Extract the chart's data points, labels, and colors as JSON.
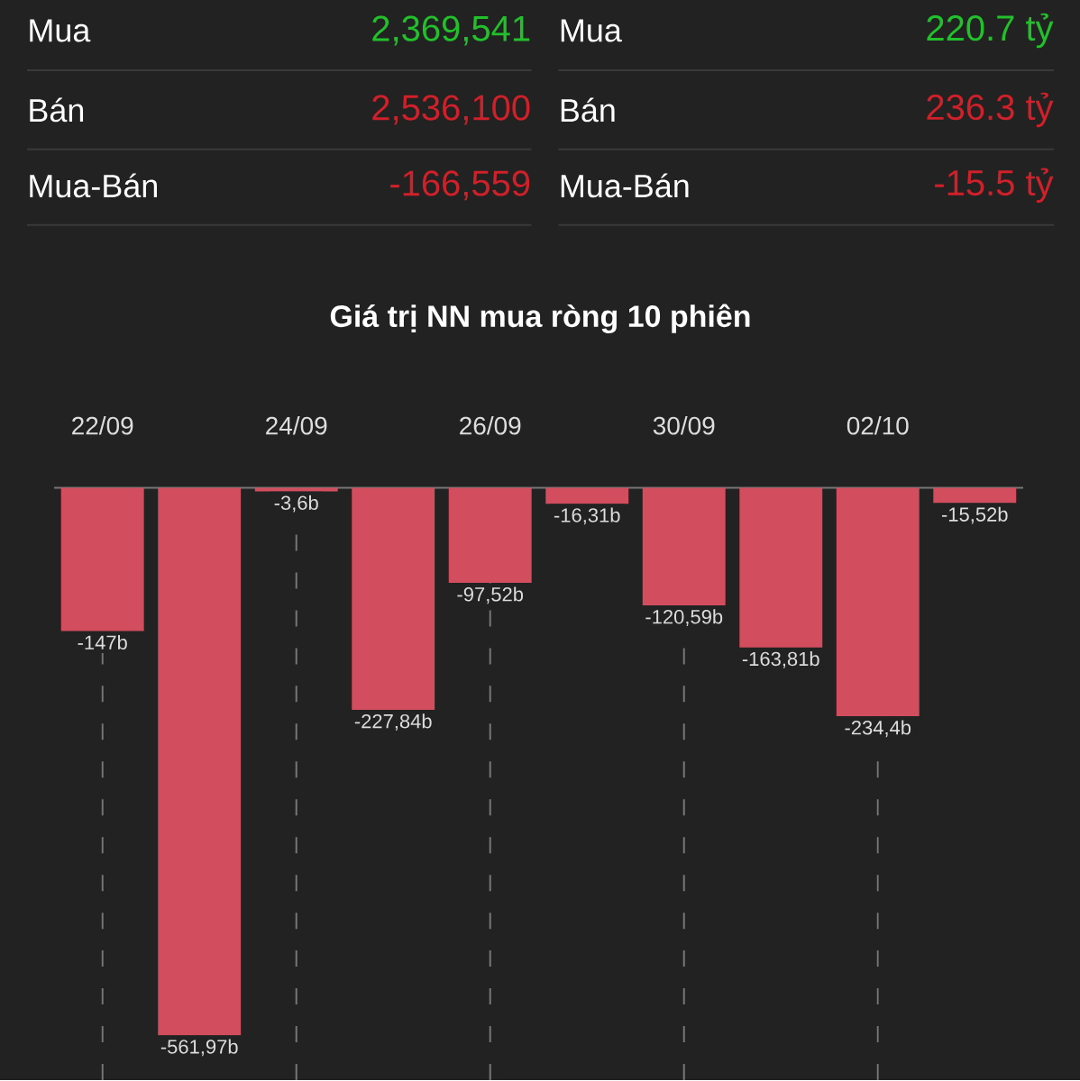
{
  "chart_data": {
    "type": "bar",
    "title": "Giá trị NN mua ròng 10 phiên",
    "categories": [
      "22/09",
      null,
      "24/09",
      null,
      "26/09",
      null,
      "30/09",
      null,
      "02/10",
      null
    ],
    "values": [
      -147,
      -561.97,
      -3.6,
      -227.84,
      -97.52,
      -16.31,
      -120.59,
      -163.81,
      -234.4,
      -15.52
    ],
    "value_labels": [
      "-147b",
      "-561,97b",
      "-3,6b",
      "-227,84b",
      "-97,52b",
      "-16,31b",
      "-120,59b",
      "-163,81b",
      "-234,4b",
      "-15,52b"
    ],
    "color": "#d24d5d",
    "grid": "x",
    "annotations": [
      "Mua",
      "2,369,541",
      "Mua",
      "220.7 tỷ",
      "Bán",
      "2,536,100",
      "Bán",
      "236.3 tỷ",
      "Mua-Bán",
      "-166,559",
      "Mua-Bán",
      "-15.5 tỷ"
    ]
  }
}
